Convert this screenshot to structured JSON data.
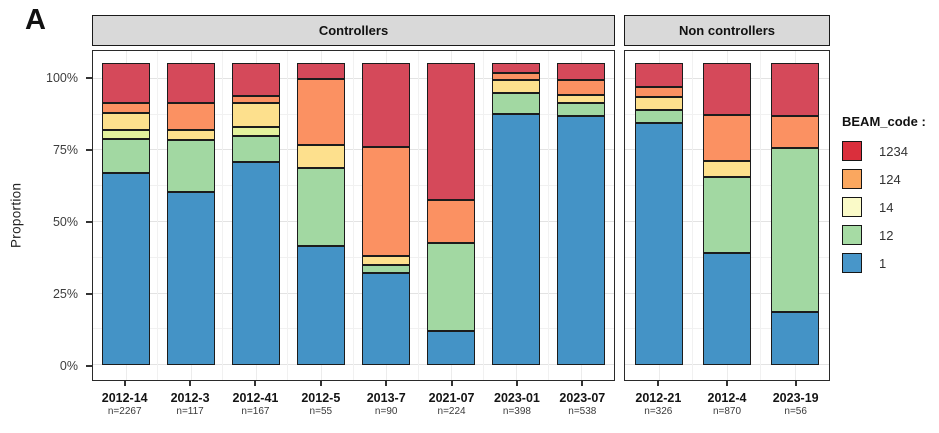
{
  "figure_label": "A",
  "y_axis": {
    "title": "Proportion",
    "ticks": [
      {
        "label": "100%",
        "value": 100
      },
      {
        "label": "75%",
        "value": 75
      },
      {
        "label": "50%",
        "value": 50
      },
      {
        "label": "25%",
        "value": 25
      },
      {
        "label": "0%",
        "value": 0
      }
    ]
  },
  "legend": {
    "title": "BEAM_code :",
    "entries": [
      {
        "label": "1234",
        "color": "#DA2F3C"
      },
      {
        "label": "124",
        "color": "#FAA75F"
      },
      {
        "label": "14",
        "color": "#FAFAC8"
      },
      {
        "label": "12",
        "color": "#A6DBA4"
      },
      {
        "label": "1",
        "color": "#4896C9"
      }
    ]
  },
  "palette": {
    "blue": "#4493C6",
    "green": "#A2D8A2",
    "pale": "#E4F29D",
    "yellow": "#FDE08D",
    "orange": "#FB9162",
    "red": "#D5495A"
  },
  "chart_data": {
    "type": "bar",
    "stacked": true,
    "ylabel": "Proportion",
    "ylim": [
      0,
      100
    ],
    "grid": true,
    "legend_position": "right",
    "stack_order_bottom_to_top": [
      "1",
      "12",
      "",
      "14",
      "124",
      "1234"
    ],
    "panels": [
      {
        "title": "Controllers",
        "bars": [
          {
            "category": "2012-14",
            "n": "n=2267",
            "segments": [
              {
                "code": "1",
                "color": "blue",
                "pct": 63.4
              },
              {
                "code": "12",
                "color": "green",
                "pct": 11.2
              },
              {
                "code": "",
                "color": "pale",
                "pct": 3.1
              },
              {
                "code": "14",
                "color": "yellow",
                "pct": 5.5
              },
              {
                "code": "124",
                "color": "orange",
                "pct": 3.5
              },
              {
                "code": "1234",
                "color": "red",
                "pct": 13.3
              }
            ]
          },
          {
            "category": "2012-3",
            "n": "n=117",
            "segments": [
              {
                "code": "1",
                "color": "blue",
                "pct": 57.2
              },
              {
                "code": "12",
                "color": "green",
                "pct": 17.3
              },
              {
                "code": "14",
                "color": "yellow",
                "pct": 3.1
              },
              {
                "code": "124",
                "color": "orange",
                "pct": 9.0
              },
              {
                "code": "1234",
                "color": "red",
                "pct": 13.4
              }
            ]
          },
          {
            "category": "2012-41",
            "n": "n=167",
            "segments": [
              {
                "code": "1",
                "color": "blue",
                "pct": 67.0
              },
              {
                "code": "12",
                "color": "green",
                "pct": 8.6
              },
              {
                "code": "",
                "color": "pale",
                "pct": 3.1
              },
              {
                "code": "14",
                "color": "yellow",
                "pct": 7.9
              },
              {
                "code": "124",
                "color": "orange",
                "pct": 2.4
              },
              {
                "code": "1234",
                "color": "red",
                "pct": 11.0
              }
            ]
          },
          {
            "category": "2012-5",
            "n": "n=55",
            "segments": [
              {
                "code": "1",
                "color": "blue",
                "pct": 39.4
              },
              {
                "code": "12",
                "color": "green",
                "pct": 25.8
              },
              {
                "code": "14",
                "color": "yellow",
                "pct": 7.4
              },
              {
                "code": "124",
                "color": "orange",
                "pct": 21.9
              },
              {
                "code": "1234",
                "color": "red",
                "pct": 5.5
              }
            ]
          },
          {
            "category": "2013-7",
            "n": "n=90",
            "segments": [
              {
                "code": "1",
                "color": "blue",
                "pct": 30.6
              },
              {
                "code": "12",
                "color": "green",
                "pct": 2.4
              },
              {
                "code": "14",
                "color": "yellow",
                "pct": 3.1
              },
              {
                "code": "124",
                "color": "orange",
                "pct": 36.0
              },
              {
                "code": "1234",
                "color": "red",
                "pct": 27.9
              }
            ]
          },
          {
            "category": "2021-07",
            "n": "n=224",
            "segments": [
              {
                "code": "1",
                "color": "blue",
                "pct": 11.2
              },
              {
                "code": "12",
                "color": "green",
                "pct": 29.2
              },
              {
                "code": "124",
                "color": "orange",
                "pct": 14.3
              },
              {
                "code": "1234",
                "color": "red",
                "pct": 45.3
              }
            ]
          },
          {
            "category": "2023-01",
            "n": "n=398",
            "segments": [
              {
                "code": "1",
                "color": "blue",
                "pct": 83.1
              },
              {
                "code": "12",
                "color": "green",
                "pct": 6.8
              },
              {
                "code": "14",
                "color": "yellow",
                "pct": 4.2
              },
              {
                "code": "124",
                "color": "orange",
                "pct": 2.4
              },
              {
                "code": "1234",
                "color": "red",
                "pct": 3.5
              }
            ]
          },
          {
            "category": "2023-07",
            "n": "n=538",
            "segments": [
              {
                "code": "1",
                "color": "blue",
                "pct": 82.2
              },
              {
                "code": "12",
                "color": "green",
                "pct": 4.5
              },
              {
                "code": "14",
                "color": "yellow",
                "pct": 2.6
              },
              {
                "code": "124",
                "color": "orange",
                "pct": 5.0
              },
              {
                "code": "1234",
                "color": "red",
                "pct": 5.7
              }
            ]
          }
        ]
      },
      {
        "title": "Non controllers",
        "bars": [
          {
            "category": "2012-21",
            "n": "n=326",
            "segments": [
              {
                "code": "1",
                "color": "blue",
                "pct": 79.9
              },
              {
                "code": "12",
                "color": "green",
                "pct": 4.4
              },
              {
                "code": "14",
                "color": "yellow",
                "pct": 4.4
              },
              {
                "code": "124",
                "color": "orange",
                "pct": 3.3
              },
              {
                "code": "1234",
                "color": "red",
                "pct": 8.0
              }
            ]
          },
          {
            "category": "2012-4",
            "n": "n=870",
            "segments": [
              {
                "code": "1",
                "color": "blue",
                "pct": 37.2
              },
              {
                "code": "12",
                "color": "green",
                "pct": 24.9
              },
              {
                "code": "14",
                "color": "yellow",
                "pct": 5.5
              },
              {
                "code": "124",
                "color": "orange",
                "pct": 15.1
              },
              {
                "code": "1234",
                "color": "red",
                "pct": 17.3
              }
            ]
          },
          {
            "category": "2023-19",
            "n": "n=56",
            "segments": [
              {
                "code": "1",
                "color": "blue",
                "pct": 17.6
              },
              {
                "code": "12",
                "color": "green",
                "pct": 54.3
              },
              {
                "code": "124",
                "color": "orange",
                "pct": 10.5
              },
              {
                "code": "1234",
                "color": "red",
                "pct": 17.6
              }
            ]
          }
        ]
      }
    ]
  }
}
